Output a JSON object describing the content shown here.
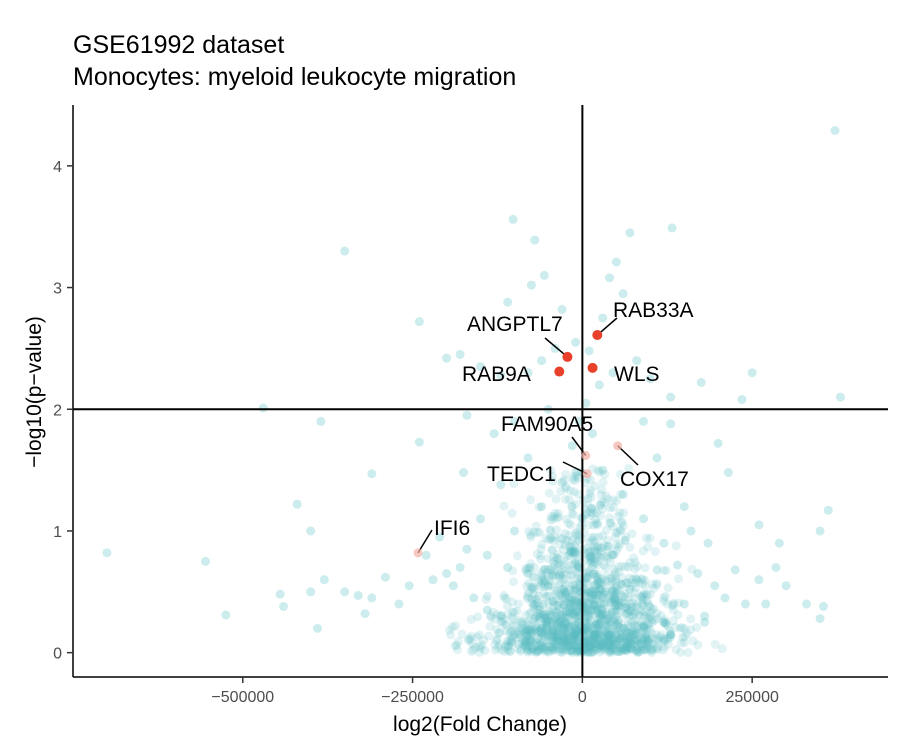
{
  "chart_data": {
    "type": "scatter",
    "title": "GSE61992 dataset",
    "subtitle": "Monocytes: myeloid leukocyte migration",
    "xlabel": "log2(Fold Change)",
    "ylabel": "−log10(p−value)",
    "xlim": [
      -750000,
      450000
    ],
    "ylim": [
      -0.2,
      4.5
    ],
    "x_ticks": [
      -500000,
      -250000,
      0,
      250000
    ],
    "x_tick_labels": [
      "−500000",
      "−250000",
      "0",
      "250000"
    ],
    "y_ticks": [
      0,
      1,
      2,
      3,
      4
    ],
    "y_tick_labels": [
      "0",
      "1",
      "2",
      "3",
      "4"
    ],
    "grid": false,
    "reference_lines": {
      "vertical_x": 0,
      "horizontal_y": 2.0
    },
    "colors": {
      "background_points": "#5bbfc2",
      "highlight_significant": "#e8402a",
      "highlight_nonsignificant": "#f4b0a8"
    },
    "highlighted_genes": [
      {
        "label": "RAB33A",
        "x": 22000,
        "y": 2.61,
        "significant": true
      },
      {
        "label": "ANGPTL7",
        "x": -22000,
        "y": 2.43,
        "significant": true
      },
      {
        "label": "RAB9A",
        "x": -34000,
        "y": 2.31,
        "significant": true
      },
      {
        "label": "WLS",
        "x": 15000,
        "y": 2.34,
        "significant": true
      },
      {
        "label": "FAM90A5",
        "x": 5000,
        "y": 1.62,
        "significant": false
      },
      {
        "label": "TEDC1",
        "x": 7000,
        "y": 1.47,
        "significant": false
      },
      {
        "label": "COX17",
        "x": 52000,
        "y": 1.7,
        "significant": false
      },
      {
        "label": "IFI6",
        "x": -242000,
        "y": 0.82,
        "significant": false
      }
    ],
    "background_points": [
      [
        372000,
        4.29
      ],
      [
        132000,
        3.49
      ],
      [
        -102000,
        3.56
      ],
      [
        -70000,
        3.39
      ],
      [
        -350000,
        3.3
      ],
      [
        70000,
        3.45
      ],
      [
        50000,
        3.21
      ],
      [
        -56000,
        3.1
      ],
      [
        -75000,
        3.02
      ],
      [
        -110000,
        2.88
      ],
      [
        -30000,
        2.82
      ],
      [
        40000,
        3.08
      ],
      [
        30000,
        2.75
      ],
      [
        60000,
        2.95
      ],
      [
        -240000,
        2.72
      ],
      [
        -200000,
        2.42
      ],
      [
        -180000,
        2.45
      ],
      [
        -150000,
        2.35
      ],
      [
        -120000,
        2.28
      ],
      [
        -80000,
        2.3
      ],
      [
        -60000,
        2.4
      ],
      [
        -40000,
        2.5
      ],
      [
        -10000,
        2.55
      ],
      [
        10000,
        2.48
      ],
      [
        25000,
        2.2
      ],
      [
        45000,
        2.3
      ],
      [
        80000,
        2.4
      ],
      [
        100000,
        2.25
      ],
      [
        130000,
        2.1
      ],
      [
        175000,
        2.22
      ],
      [
        250000,
        2.3
      ],
      [
        235000,
        2.08
      ],
      [
        380000,
        2.1
      ],
      [
        -470000,
        2.01
      ],
      [
        -385000,
        1.9
      ],
      [
        -240000,
        1.73
      ],
      [
        -170000,
        1.95
      ],
      [
        -130000,
        1.8
      ],
      [
        -100000,
        1.9
      ],
      [
        -50000,
        2.0
      ],
      [
        90000,
        1.9
      ],
      [
        130000,
        1.88
      ],
      [
        200000,
        1.72
      ],
      [
        215000,
        1.48
      ],
      [
        -310000,
        1.47
      ],
      [
        -175000,
        1.48
      ],
      [
        -120000,
        1.38
      ],
      [
        -80000,
        1.6
      ],
      [
        110000,
        1.6
      ],
      [
        150000,
        1.2
      ],
      [
        -420000,
        1.22
      ],
      [
        -400000,
        1.0
      ],
      [
        -230000,
        0.8
      ],
      [
        -150000,
        1.1
      ],
      [
        -100000,
        1.0
      ],
      [
        -60000,
        1.2
      ],
      [
        -30000,
        1.4
      ],
      [
        -15000,
        1.7
      ],
      [
        -5000,
        1.9
      ],
      [
        5000,
        2.05
      ],
      [
        15000,
        1.8
      ],
      [
        30000,
        1.5
      ],
      [
        60000,
        1.3
      ],
      [
        90000,
        1.1
      ],
      [
        120000,
        0.9
      ],
      [
        160000,
        1.0
      ],
      [
        185000,
        0.9
      ],
      [
        260000,
        1.05
      ],
      [
        290000,
        0.9
      ],
      [
        350000,
        1.0
      ],
      [
        362000,
        1.17
      ],
      [
        285000,
        0.7
      ],
      [
        260000,
        0.6
      ],
      [
        300000,
        0.55
      ],
      [
        330000,
        0.4
      ],
      [
        350000,
        0.28
      ],
      [
        355000,
        0.38
      ],
      [
        -700000,
        0.82
      ],
      [
        -555000,
        0.75
      ],
      [
        -525000,
        0.31
      ],
      [
        -445000,
        0.48
      ],
      [
        -440000,
        0.38
      ],
      [
        -400000,
        0.5
      ],
      [
        -390000,
        0.2
      ],
      [
        -350000,
        0.5
      ],
      [
        -330000,
        0.47
      ],
      [
        -320000,
        0.32
      ],
      [
        -310000,
        0.45
      ],
      [
        -270000,
        0.4
      ],
      [
        -255000,
        0.55
      ],
      [
        -220000,
        0.6
      ],
      [
        -200000,
        0.65
      ],
      [
        -180000,
        0.7
      ],
      [
        -160000,
        0.45
      ],
      [
        -140000,
        0.35
      ],
      [
        -120000,
        0.3
      ],
      [
        -90000,
        0.25
      ],
      [
        -60000,
        0.2
      ],
      [
        -30000,
        0.1
      ],
      [
        -10000,
        0.05
      ],
      [
        10000,
        0.05
      ],
      [
        30000,
        0.12
      ],
      [
        60000,
        0.2
      ],
      [
        90000,
        0.22
      ],
      [
        120000,
        0.25
      ],
      [
        150000,
        0.4
      ],
      [
        180000,
        0.3
      ],
      [
        210000,
        0.45
      ],
      [
        240000,
        0.4
      ],
      [
        270000,
        0.4
      ],
      [
        -380000,
        0.6
      ],
      [
        -290000,
        0.62
      ],
      [
        -190000,
        0.55
      ],
      [
        -170000,
        0.85
      ],
      [
        -210000,
        0.95
      ],
      [
        -140000,
        0.8
      ],
      [
        -110000,
        0.7
      ],
      [
        -80000,
        0.65
      ],
      [
        -50000,
        0.55
      ],
      [
        -20000,
        0.45
      ],
      [
        20000,
        0.35
      ],
      [
        50000,
        0.5
      ],
      [
        80000,
        0.6
      ],
      [
        110000,
        0.68
      ],
      [
        140000,
        0.72
      ],
      [
        170000,
        0.65
      ],
      [
        195000,
        0.55
      ],
      [
        225000,
        0.68
      ],
      [
        180000,
        0.25
      ],
      [
        130000,
        0.15
      ]
    ]
  }
}
